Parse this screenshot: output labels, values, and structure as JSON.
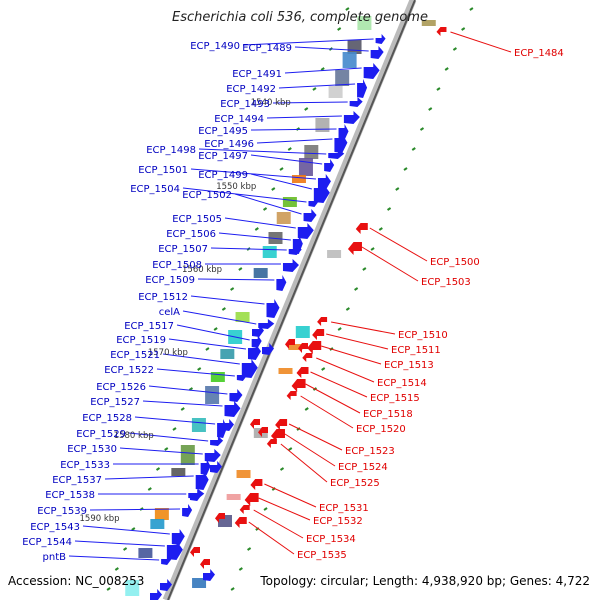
{
  "title": "Escherichia coli 536, complete genome",
  "footer": {
    "accession": "Accession: NC_008253",
    "topology": "Topology: circular; Length: 4,938,920 bp; Genes: 4,722"
  },
  "colors": {
    "forward_gene": "#1d1df0",
    "reverse_gene": "#e81010",
    "forward_label": "#0000c0",
    "reverse_label": "#e00000",
    "backbone": "#999999",
    "tick": "#2a8a2a"
  },
  "scale_labels": [
    "1540 kbp",
    "1550 kbp",
    "1560 kbp",
    "1570 kbp",
    "1580 kbp",
    "1590 kbp"
  ],
  "forward_genes": [
    "ECP_1490",
    "ECP_1489",
    "ECP_1491",
    "ECP_1492",
    "ECP_1493",
    "ECP_1494",
    "ECP_1495",
    "ECP_1496",
    "ECP_1498",
    "ECP_1497",
    "ECP_1501",
    "ECP_1499",
    "ECP_1504",
    "ECP_1502",
    "ECP_1505",
    "ECP_1506",
    "ECP_1507",
    "ECP_1508",
    "ECP_1509",
    "ECP_1512",
    "celA",
    "ECP_1517",
    "ECP_1519",
    "ECP_1521",
    "ECP_1522",
    "ECP_1526",
    "ECP_1527",
    "ECP_1528",
    "ECP_1529",
    "ECP_1530",
    "ECP_1533",
    "ECP_1537",
    "ECP_1538",
    "ECP_1539",
    "ECP_1543",
    "ECP_1544",
    "pntB"
  ],
  "reverse_genes": [
    "ECP_1484",
    "ECP_1500",
    "ECP_1503",
    "ECP_1510",
    "ECP_1511",
    "ECP_1513",
    "ECP_1514",
    "ECP_1515",
    "ECP_1518",
    "ECP_1520",
    "ECP_1523",
    "ECP_1524",
    "ECP_1525",
    "ECP_1531",
    "ECP_1532",
    "ECP_1534",
    "ECP_1535"
  ]
}
